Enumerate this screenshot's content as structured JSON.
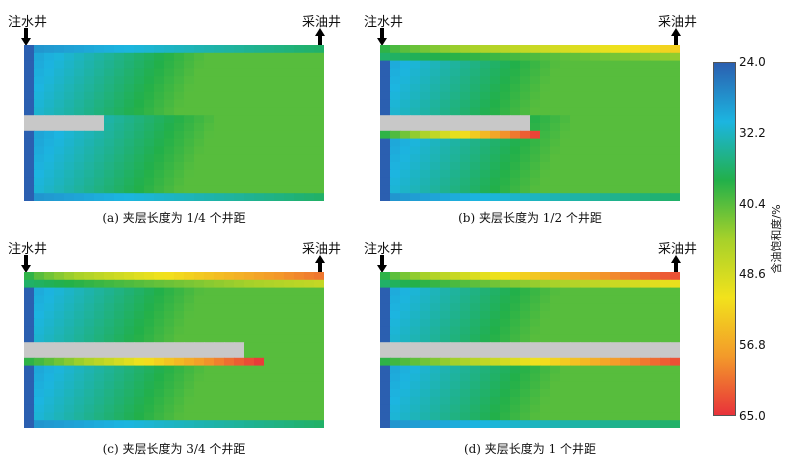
{
  "labels": {
    "injector": "注水井",
    "producer": "采油井"
  },
  "panels": [
    {
      "caption": "(a) 夹层长度为 1/4 个井距",
      "interlayer_fraction": 0.25
    },
    {
      "caption": "(b) 夹层长度为 1/2 个井距",
      "interlayer_fraction": 0.5
    },
    {
      "caption": "(c) 夹层长度为 3/4 个井距",
      "interlayer_fraction": 0.75
    },
    {
      "caption": "(d) 夹层长度为 1 个井距",
      "interlayer_fraction": 1.0
    }
  ],
  "colorbar": {
    "title": "含油饱和度/%",
    "ticks": [
      "24.0",
      "32.2",
      "40.4",
      "48.6",
      "56.8",
      "65.0"
    ],
    "colors": [
      "#2b5fb0",
      "#1cb5e0",
      "#22b04a",
      "#a6d12a",
      "#f2e21c",
      "#f39a2a",
      "#e8323a"
    ]
  },
  "icons": {
    "injector_arrow": "arrow-down-icon",
    "producer_arrow": "arrow-up-icon"
  }
}
